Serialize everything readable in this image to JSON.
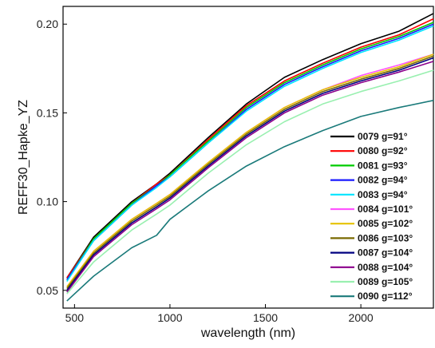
{
  "chart_data": {
    "type": "line",
    "title": "",
    "xlabel": "wavelength (nm)",
    "ylabel": "REFF30_Hapke_YZ",
    "xlim": [
      440,
      2380
    ],
    "ylim": [
      0.04,
      0.21
    ],
    "xticks": [
      500,
      1000,
      1500,
      2000
    ],
    "xtick_labels": [
      "500",
      "1000",
      "1500",
      "2000"
    ],
    "yticks": [
      0.05,
      0.1,
      0.15,
      0.2
    ],
    "ytick_labels": [
      "0.05",
      "0.10",
      "0.15",
      "0.20"
    ],
    "grid": false,
    "legend_position": "lower-right",
    "series": [
      {
        "name": "0079 g=91°",
        "color": "#000000",
        "x": [
          460,
          600,
          800,
          930,
          1000,
          1200,
          1400,
          1600,
          1800,
          2000,
          2200,
          2380
        ],
        "y": [
          0.057,
          0.08,
          0.1,
          0.11,
          0.116,
          0.136,
          0.155,
          0.17,
          0.18,
          0.189,
          0.196,
          0.206
        ]
      },
      {
        "name": "0080 g=92°",
        "color": "#ff0000",
        "x": [
          460,
          600,
          800,
          930,
          1000,
          1200,
          1400,
          1600,
          1800,
          2000,
          2200,
          2380
        ],
        "y": [
          0.057,
          0.079,
          0.099,
          0.11,
          0.115,
          0.135,
          0.154,
          0.168,
          0.178,
          0.187,
          0.194,
          0.203
        ]
      },
      {
        "name": "0081 g=93°",
        "color": "#00cc00",
        "x": [
          460,
          600,
          800,
          930,
          1000,
          1200,
          1400,
          1600,
          1800,
          2000,
          2200,
          2380
        ],
        "y": [
          0.056,
          0.079,
          0.099,
          0.109,
          0.115,
          0.134,
          0.153,
          0.167,
          0.177,
          0.186,
          0.193,
          0.201
        ]
      },
      {
        "name": "0082 g=94°",
        "color": "#1a1aff",
        "x": [
          460,
          600,
          800,
          930,
          1000,
          1200,
          1400,
          1600,
          1800,
          2000,
          2200,
          2380
        ],
        "y": [
          0.056,
          0.078,
          0.098,
          0.109,
          0.114,
          0.133,
          0.152,
          0.166,
          0.176,
          0.185,
          0.192,
          0.2
        ]
      },
      {
        "name": "0083 g=94°",
        "color": "#00e5ff",
        "x": [
          460,
          600,
          800,
          930,
          1000,
          1200,
          1400,
          1600,
          1800,
          2000,
          2200,
          2380
        ],
        "y": [
          0.055,
          0.078,
          0.098,
          0.108,
          0.114,
          0.133,
          0.151,
          0.165,
          0.175,
          0.184,
          0.191,
          0.199
        ]
      },
      {
        "name": "0084 g=101°",
        "color": "#ff55ff",
        "x": [
          460,
          600,
          800,
          930,
          1000,
          1200,
          1400,
          1600,
          1800,
          2000,
          2200,
          2380
        ],
        "y": [
          0.052,
          0.072,
          0.09,
          0.099,
          0.104,
          0.122,
          0.139,
          0.153,
          0.163,
          0.171,
          0.177,
          0.183
        ]
      },
      {
        "name": "0085 g=102°",
        "color": "#e6c200",
        "x": [
          460,
          600,
          800,
          930,
          1000,
          1200,
          1400,
          1600,
          1800,
          2000,
          2200,
          2380
        ],
        "y": [
          0.052,
          0.072,
          0.09,
          0.099,
          0.104,
          0.122,
          0.139,
          0.153,
          0.163,
          0.17,
          0.176,
          0.183
        ]
      },
      {
        "name": "0086 g=103°",
        "color": "#7a6a00",
        "x": [
          460,
          600,
          800,
          930,
          1000,
          1200,
          1400,
          1600,
          1800,
          2000,
          2200,
          2380
        ],
        "y": [
          0.051,
          0.071,
          0.089,
          0.098,
          0.103,
          0.121,
          0.138,
          0.152,
          0.162,
          0.169,
          0.175,
          0.182
        ]
      },
      {
        "name": "0087 g=104°",
        "color": "#000080",
        "x": [
          460,
          600,
          800,
          930,
          1000,
          1200,
          1400,
          1600,
          1800,
          2000,
          2200,
          2380
        ],
        "y": [
          0.05,
          0.07,
          0.088,
          0.097,
          0.102,
          0.12,
          0.137,
          0.151,
          0.161,
          0.168,
          0.174,
          0.181
        ]
      },
      {
        "name": "0088 g=104°",
        "color": "#8b008b",
        "x": [
          460,
          600,
          800,
          930,
          1000,
          1200,
          1400,
          1600,
          1800,
          2000,
          2200,
          2380
        ],
        "y": [
          0.049,
          0.069,
          0.087,
          0.096,
          0.101,
          0.119,
          0.136,
          0.15,
          0.16,
          0.167,
          0.173,
          0.179
        ]
      },
      {
        "name": "0089 g=105°",
        "color": "#99f0b0",
        "x": [
          460,
          600,
          800,
          930,
          1000,
          1200,
          1400,
          1600,
          1800,
          2000,
          2200,
          2380
        ],
        "y": [
          0.048,
          0.066,
          0.084,
          0.093,
          0.098,
          0.116,
          0.132,
          0.145,
          0.155,
          0.162,
          0.168,
          0.174
        ]
      },
      {
        "name": "0090 g=112°",
        "color": "#1a7a7a",
        "x": [
          460,
          600,
          800,
          930,
          1000,
          1200,
          1400,
          1600,
          1800,
          2000,
          2200,
          2380
        ],
        "y": [
          0.044,
          0.058,
          0.074,
          0.081,
          0.09,
          0.106,
          0.12,
          0.131,
          0.14,
          0.148,
          0.153,
          0.157
        ]
      }
    ]
  }
}
